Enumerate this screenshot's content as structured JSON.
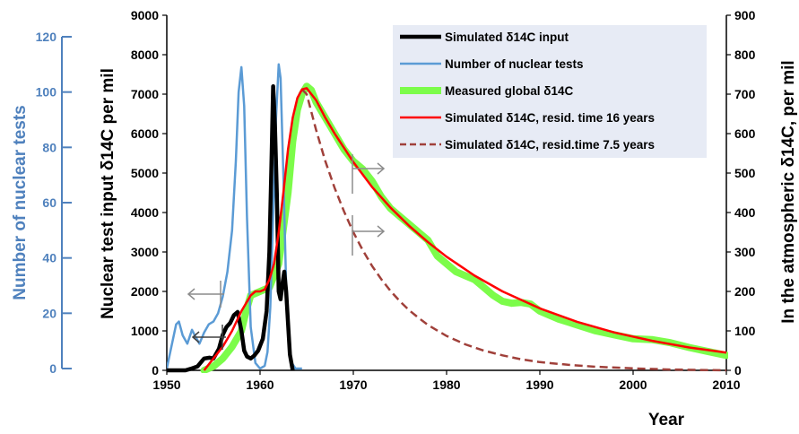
{
  "chart_data": {
    "type": "line",
    "xlabel": "Year",
    "ylabel_left_outer": "Number of nuclear tests",
    "ylabel_left_inner": "Nuclear test input δ14C per mil",
    "ylabel_right": "In the atmospheric δ14C, per mil",
    "xlim": [
      1950,
      2010
    ],
    "x_ticks": [
      "1950",
      "1960",
      "1970",
      "1980",
      "1990",
      "2000",
      "2010"
    ],
    "y_tests_lim": [
      0,
      120
    ],
    "y_tests_ticks": [
      "0",
      "20",
      "40",
      "60",
      "80",
      "100",
      "120"
    ],
    "y_input_lim": [
      0,
      9000
    ],
    "y_input_ticks": [
      "0",
      "1000",
      "2000",
      "3000",
      "4000",
      "5000",
      "6000",
      "7000",
      "8000",
      "9000"
    ],
    "y_atm_lim": [
      0,
      900
    ],
    "y_atm_ticks": [
      "0",
      "100",
      "200",
      "300",
      "400",
      "500",
      "600",
      "700",
      "800",
      "900"
    ],
    "grid": false,
    "legend_position": "top-right",
    "colors": {
      "tests": "#5b9bd5",
      "tests_axis": "#4f81bd",
      "input": "#000000",
      "measured": "#7cfc4a",
      "sim16": "#ff0000",
      "sim75": "#a0403a",
      "arrows": "#8c8c8c",
      "legend_bg": "#e7ebf5"
    },
    "series": [
      {
        "name": "Simulated δ14C input",
        "axis": "input",
        "x": [
          1950.0,
          1951.5,
          1952.0,
          1952.6,
          1953.3,
          1954.0,
          1954.6,
          1955.0,
          1955.6,
          1956.0,
          1956.4,
          1956.8,
          1957.2,
          1957.6,
          1958.0,
          1958.3,
          1958.6,
          1959.0,
          1959.4,
          1959.8,
          1960.3,
          1960.7,
          1961.0,
          1961.2,
          1961.4,
          1961.6,
          1961.8,
          1962.0,
          1962.2,
          1962.4,
          1962.6,
          1962.8,
          1963.0,
          1963.2,
          1963.5
        ],
        "y": [
          0,
          0,
          0,
          40,
          100,
          300,
          320,
          300,
          550,
          900,
          1100,
          1200,
          1400,
          1480,
          1000,
          500,
          350,
          300,
          380,
          500,
          800,
          1500,
          3000,
          5000,
          7200,
          6200,
          4500,
          2000,
          1800,
          2200,
          2500,
          2000,
          1200,
          400,
          0
        ]
      },
      {
        "name": "Number of nuclear tests",
        "axis": "tests",
        "x": [
          1950.0,
          1950.5,
          1951.0,
          1951.3,
          1951.7,
          1952.2,
          1952.7,
          1953.0,
          1953.5,
          1954.0,
          1954.5,
          1955.0,
          1955.5,
          1956.0,
          1956.5,
          1957.0,
          1957.4,
          1957.7,
          1958.0,
          1958.3,
          1958.6,
          1959.0,
          1959.5,
          1960.0,
          1960.5,
          1960.8,
          1961.1,
          1961.4,
          1961.7,
          1962.0,
          1962.2,
          1962.5,
          1962.8,
          1963.1,
          1963.4,
          1963.8,
          1964.5
        ],
        "y": [
          0,
          8,
          16,
          17,
          12,
          9,
          14,
          12,
          9,
          13,
          16,
          17,
          20,
          26,
          35,
          50,
          75,
          100,
          109,
          95,
          55,
          15,
          2,
          0,
          1,
          6,
          22,
          55,
          90,
          110,
          105,
          70,
          30,
          8,
          2,
          0,
          0
        ]
      },
      {
        "name": "Measured global δ14C",
        "axis": "atmospheric",
        "x": [
          1954.0,
          1955.0,
          1956.0,
          1957.0,
          1958.0,
          1958.5,
          1959.0,
          1960.0,
          1961.0,
          1962.0,
          1963.0,
          1963.5,
          1964.0,
          1964.5,
          1965.0,
          1965.5,
          1966.0,
          1967.0,
          1968.0,
          1969.0,
          1970.0,
          1971.0,
          1972.0,
          1973.0,
          1974.0,
          1975.0,
          1976.0,
          1977.0,
          1978.0,
          1979.0,
          1980.0,
          1981.0,
          1982.0,
          1983.0,
          1984.0,
          1985.0,
          1986.0,
          1987.0,
          1988.0,
          1989.0,
          1990.0,
          1992.0,
          1994.0,
          1996.0,
          1998.0,
          2000.0,
          2002.0,
          2004.0,
          2006.0,
          2008.0,
          2010.0
        ],
        "y": [
          0,
          10,
          30,
          60,
          100,
          150,
          190,
          200,
          210,
          270,
          450,
          580,
          660,
          700,
          720,
          710,
          680,
          640,
          600,
          560,
          530,
          510,
          480,
          440,
          410,
          390,
          370,
          350,
          330,
          290,
          270,
          250,
          240,
          230,
          210,
          190,
          175,
          170,
          172,
          168,
          150,
          130,
          115,
          100,
          90,
          80,
          78,
          70,
          58,
          48,
          38
        ]
      },
      {
        "name": "Simulated δ14C, resid. time 16 years",
        "axis": "atmospheric",
        "x": [
          1954.0,
          1955.0,
          1956.0,
          1957.0,
          1958.0,
          1959.0,
          1959.5,
          1960.0,
          1960.5,
          1961.0,
          1961.5,
          1962.0,
          1962.5,
          1963.0,
          1963.5,
          1964.0,
          1964.5,
          1965.0,
          1966.0,
          1967.0,
          1968.0,
          1970.0,
          1972.0,
          1974.0,
          1976.0,
          1978.0,
          1980.0,
          1983.0,
          1986.0,
          1990.0,
          1994.0,
          1998.0,
          2002.0,
          2006.0,
          2010.0
        ],
        "y": [
          0,
          30,
          60,
          100,
          150,
          190,
          200,
          200,
          205,
          230,
          270,
          350,
          450,
          560,
          640,
          690,
          712,
          715,
          685,
          640,
          600,
          528,
          465,
          412,
          366,
          325,
          288,
          240,
          200,
          157,
          123,
          96,
          75,
          58,
          45
        ]
      },
      {
        "name": "Simulated δ14C, resid.time 7.5 years",
        "axis": "atmospheric",
        "x": [
          1964.5,
          1965.0,
          1966.0,
          1967.0,
          1968.0,
          1969.0,
          1970.0,
          1971.0,
          1972.0,
          1973.0,
          1974.0,
          1975.0,
          1976.0,
          1977.0,
          1978.0,
          1980.0,
          1982.0,
          1984.0,
          1986.0,
          1988.0,
          1990.0,
          1993.0,
          1996.0,
          2000.0,
          2004.0,
          2010.0
        ],
        "y": [
          712,
          700,
          610,
          530,
          462,
          403,
          350,
          305,
          265,
          231,
          201,
          175,
          152,
          133,
          115,
          87,
          66,
          50,
          38,
          28,
          21,
          14,
          9,
          5,
          2,
          0
        ]
      }
    ]
  }
}
